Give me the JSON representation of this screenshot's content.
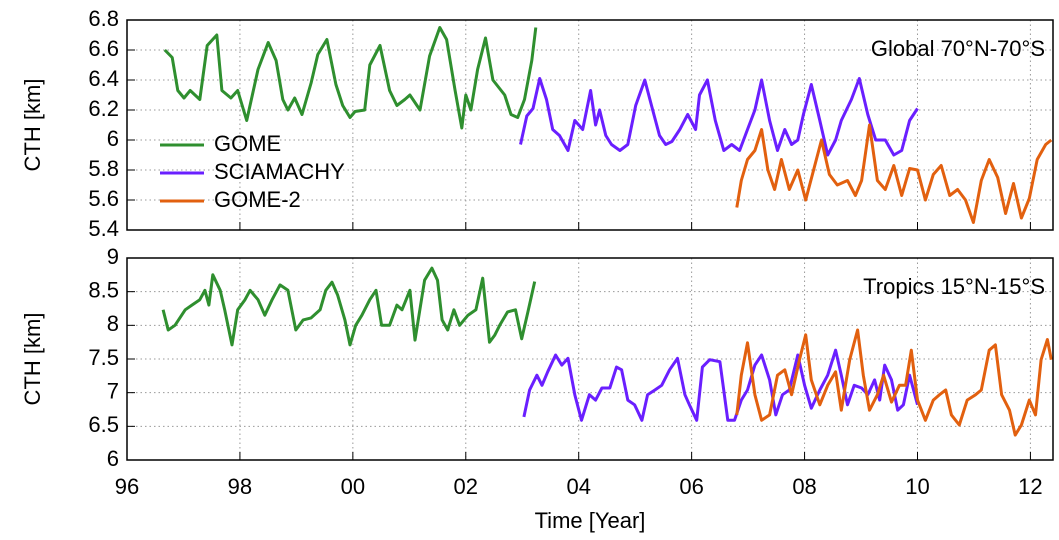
{
  "chart_data": [
    {
      "type": "line",
      "ylabel": "CTH [km]",
      "annotation": "Global 70°N-70°S",
      "grid": true,
      "legend": "left",
      "xlim": [
        1996,
        2012.4
      ],
      "xticks": [
        1996,
        1998,
        2000,
        2002,
        2004,
        2006,
        2008,
        2010,
        2012
      ],
      "ylim": [
        5.4,
        6.8
      ],
      "yticks": [
        5.4,
        5.6,
        5.8,
        6,
        6.2,
        6.4,
        6.6,
        6.8
      ],
      "series": [
        {
          "name": "GOME",
          "color": "#2f8f2f",
          "x": [
            1996.67,
            1996.8,
            1996.9,
            1997.01,
            1997.12,
            1997.29,
            1997.42,
            1997.59,
            1997.68,
            1997.84,
            1997.96,
            1998.12,
            1998.32,
            1998.5,
            1998.64,
            1998.76,
            1998.85,
            1998.97,
            1999.1,
            1999.26,
            1999.38,
            1999.54,
            1999.7,
            1999.82,
            1999.95,
            2000.04,
            2000.21,
            2000.3,
            2000.48,
            2000.65,
            2000.78,
            2000.92,
            2001.01,
            2001.19,
            2001.36,
            2001.54,
            2001.66,
            2001.81,
            2001.93,
            2002.0,
            2002.09,
            2002.21,
            2002.35,
            2002.48,
            2002.69,
            2002.8,
            2002.92,
            2003.04,
            2003.17,
            2003.24
          ],
          "values": [
            6.6,
            6.55,
            6.33,
            6.28,
            6.33,
            6.27,
            6.63,
            6.7,
            6.33,
            6.28,
            6.33,
            6.13,
            6.47,
            6.65,
            6.53,
            6.27,
            6.2,
            6.28,
            6.17,
            6.38,
            6.57,
            6.67,
            6.37,
            6.23,
            6.15,
            6.19,
            6.2,
            6.5,
            6.63,
            6.33,
            6.23,
            6.27,
            6.3,
            6.2,
            6.56,
            6.75,
            6.67,
            6.33,
            6.08,
            6.3,
            6.2,
            6.47,
            6.68,
            6.4,
            6.3,
            6.17,
            6.15,
            6.27,
            6.53,
            6.75
          ]
        },
        {
          "name": "SCIAMACHY",
          "color": "#6a1fff",
          "x": [
            2002.97,
            2003.08,
            2003.19,
            2003.31,
            2003.43,
            2003.54,
            2003.66,
            2003.81,
            2003.93,
            2004.07,
            2004.21,
            2004.3,
            2004.37,
            2004.48,
            2004.58,
            2004.73,
            2004.87,
            2005.01,
            2005.17,
            2005.29,
            2005.43,
            2005.54,
            2005.65,
            2005.79,
            2005.93,
            2006.07,
            2006.14,
            2006.28,
            2006.42,
            2006.57,
            2006.71,
            2006.85,
            2006.99,
            2007.12,
            2007.24,
            2007.38,
            2007.52,
            2007.65,
            2007.77,
            2007.88,
            2007.98,
            2008.12,
            2008.27,
            2008.41,
            2008.55,
            2008.65,
            2008.83,
            2008.97,
            2009.12,
            2009.26,
            2009.43,
            2009.58,
            2009.72,
            2009.86,
            2010.0
          ],
          "values": [
            5.97,
            6.16,
            6.21,
            6.41,
            6.27,
            6.07,
            6.03,
            5.93,
            6.13,
            6.07,
            6.33,
            6.1,
            6.2,
            6.03,
            5.97,
            5.93,
            5.97,
            6.23,
            6.4,
            6.23,
            6.03,
            5.97,
            5.99,
            6.07,
            6.17,
            6.07,
            6.3,
            6.4,
            6.13,
            5.93,
            5.97,
            5.93,
            6.07,
            6.2,
            6.4,
            6.13,
            5.93,
            6.07,
            5.97,
            6.0,
            6.17,
            6.37,
            6.13,
            5.9,
            6.0,
            6.13,
            6.27,
            6.41,
            6.17,
            6.0,
            6.0,
            5.9,
            5.93,
            6.13,
            6.21
          ]
        },
        {
          "name": "GOME-2",
          "color": "#e2600f",
          "x": [
            2006.8,
            2006.88,
            2006.99,
            2007.12,
            2007.24,
            2007.35,
            2007.47,
            2007.59,
            2007.73,
            2007.88,
            2008.02,
            2008.16,
            2008.3,
            2008.44,
            2008.58,
            2008.76,
            2008.9,
            2009.01,
            2009.15,
            2009.29,
            2009.43,
            2009.58,
            2009.72,
            2009.86,
            2010.0,
            2010.14,
            2010.28,
            2010.42,
            2010.57,
            2010.71,
            2010.85,
            2010.99,
            2011.13,
            2011.27,
            2011.42,
            2011.56,
            2011.7,
            2011.84,
            2011.98,
            2012.12,
            2012.27,
            2012.37
          ],
          "values": [
            5.55,
            5.73,
            5.87,
            5.93,
            6.07,
            5.8,
            5.67,
            5.87,
            5.67,
            5.8,
            5.6,
            5.8,
            6.0,
            5.77,
            5.7,
            5.73,
            5.63,
            5.73,
            6.1,
            5.73,
            5.67,
            5.83,
            5.63,
            5.81,
            5.8,
            5.6,
            5.77,
            5.83,
            5.63,
            5.67,
            5.6,
            5.45,
            5.73,
            5.87,
            5.75,
            5.51,
            5.71,
            5.48,
            5.61,
            5.87,
            5.97,
            6.0
          ]
        }
      ]
    },
    {
      "type": "line",
      "ylabel": "CTH [km]",
      "annotation": "Tropics 15°N-15°S",
      "xlabel": "Time [Year]",
      "grid": true,
      "xlim": [
        1996,
        2012.4
      ],
      "xticks": [
        {
          "value": 1996,
          "label": "96"
        },
        {
          "value": 1998,
          "label": "98"
        },
        {
          "value": 2000,
          "label": "00"
        },
        {
          "value": 2002,
          "label": "02"
        },
        {
          "value": 2004,
          "label": "04"
        },
        {
          "value": 2006,
          "label": "06"
        },
        {
          "value": 2008,
          "label": "08"
        },
        {
          "value": 2010,
          "label": "10"
        },
        {
          "value": 2012,
          "label": "12"
        }
      ],
      "ylim": [
        6,
        9
      ],
      "yticks": [
        6,
        6.5,
        7,
        7.5,
        8,
        8.5,
        9
      ],
      "series": [
        {
          "color": "#2f8f2f",
          "x": [
            1996.64,
            1996.73,
            1996.85,
            1997.03,
            1997.15,
            1997.29,
            1997.38,
            1997.45,
            1997.52,
            1997.65,
            1997.73,
            1997.86,
            1997.96,
            1998.09,
            1998.18,
            1998.32,
            1998.44,
            1998.57,
            1998.71,
            1998.85,
            1998.99,
            1999.12,
            1999.26,
            1999.42,
            1999.52,
            1999.63,
            1999.73,
            1999.86,
            1999.95,
            2000.05,
            2000.16,
            2000.3,
            2000.41,
            2000.51,
            2000.65,
            2000.78,
            2000.87,
            2001.01,
            2001.1,
            2001.27,
            2001.4,
            2001.5,
            2001.58,
            2001.68,
            2001.79,
            2001.89,
            2002.04,
            2002.18,
            2002.3,
            2002.42,
            2002.51,
            2002.6,
            2002.74,
            2002.88,
            2002.99,
            2003.1,
            2003.22
          ],
          "values": [
            8.23,
            7.93,
            8.0,
            8.23,
            8.3,
            8.38,
            8.52,
            8.3,
            8.75,
            8.52,
            8.23,
            7.71,
            8.23,
            8.38,
            8.52,
            8.38,
            8.15,
            8.38,
            8.6,
            8.52,
            7.93,
            8.08,
            8.11,
            8.23,
            8.52,
            8.64,
            8.45,
            8.08,
            7.71,
            8.0,
            8.15,
            8.38,
            8.52,
            8.0,
            8.0,
            8.3,
            8.23,
            8.52,
            7.78,
            8.67,
            8.85,
            8.67,
            8.08,
            7.93,
            8.23,
            8.0,
            8.15,
            8.23,
            8.7,
            7.75,
            7.85,
            8.0,
            8.2,
            8.23,
            7.8,
            8.2,
            8.65
          ]
        },
        {
          "color": "#6a1fff",
          "x": [
            2003.03,
            2003.13,
            2003.26,
            2003.35,
            2003.45,
            2003.59,
            2003.7,
            2003.81,
            2003.93,
            2004.05,
            2004.19,
            2004.3,
            2004.41,
            2004.55,
            2004.67,
            2004.76,
            2004.87,
            2004.99,
            2005.12,
            2005.22,
            2005.35,
            2005.47,
            2005.61,
            2005.75,
            2005.88,
            2005.96,
            2006.09,
            2006.19,
            2006.32,
            2006.5,
            2006.64,
            2006.76,
            2006.88,
            2006.99,
            2007.12,
            2007.24,
            2007.38,
            2007.49,
            2007.61,
            2007.73,
            2007.88,
            2008.0,
            2008.12,
            2008.27,
            2008.41,
            2008.55,
            2008.65,
            2008.76,
            2008.88,
            2009.01,
            2009.12,
            2009.24,
            2009.33,
            2009.42,
            2009.54,
            2009.65,
            2009.75,
            2009.86,
            2010.0
          ],
          "values": [
            6.64,
            7.04,
            7.26,
            7.11,
            7.31,
            7.56,
            7.41,
            7.51,
            6.97,
            6.59,
            6.97,
            6.89,
            7.07,
            7.07,
            7.38,
            7.34,
            6.89,
            6.82,
            6.59,
            6.97,
            7.04,
            7.11,
            7.34,
            7.51,
            6.97,
            6.82,
            6.59,
            7.38,
            7.49,
            7.46,
            6.59,
            6.59,
            6.89,
            7.04,
            7.41,
            7.56,
            7.19,
            6.67,
            6.97,
            7.04,
            7.56,
            7.11,
            6.77,
            7.04,
            7.26,
            7.63,
            7.26,
            6.82,
            7.11,
            7.07,
            6.97,
            7.19,
            6.89,
            7.41,
            7.19,
            6.74,
            6.82,
            7.26,
            6.82
          ]
        },
        {
          "color": "#e2600f",
          "x": [
            2006.8,
            2006.88,
            2006.99,
            2007.12,
            2007.24,
            2007.38,
            2007.52,
            2007.65,
            2007.77,
            2007.91,
            2008.02,
            2008.12,
            2008.27,
            2008.41,
            2008.55,
            2008.65,
            2008.8,
            2008.94,
            2009.04,
            2009.15,
            2009.29,
            2009.4,
            2009.54,
            2009.68,
            2009.79,
            2009.89,
            2010.0,
            2010.14,
            2010.28,
            2010.39,
            2010.5,
            2010.6,
            2010.74,
            2010.88,
            2011.03,
            2011.13,
            2011.27,
            2011.38,
            2011.49,
            2011.63,
            2011.73,
            2011.84,
            2011.98,
            2012.09,
            2012.19,
            2012.3,
            2012.37
          ],
          "values": [
            6.67,
            7.26,
            7.74,
            6.97,
            6.59,
            6.67,
            7.26,
            7.34,
            6.97,
            7.49,
            7.86,
            7.19,
            6.82,
            7.11,
            7.31,
            6.74,
            7.49,
            7.93,
            7.26,
            6.74,
            6.97,
            7.26,
            6.86,
            7.11,
            7.11,
            7.63,
            6.89,
            6.59,
            6.89,
            6.97,
            7.04,
            6.67,
            6.52,
            6.89,
            6.97,
            7.04,
            7.63,
            7.71,
            6.97,
            6.74,
            6.37,
            6.52,
            6.89,
            6.67,
            7.49,
            7.79,
            7.49
          ]
        }
      ]
    }
  ]
}
